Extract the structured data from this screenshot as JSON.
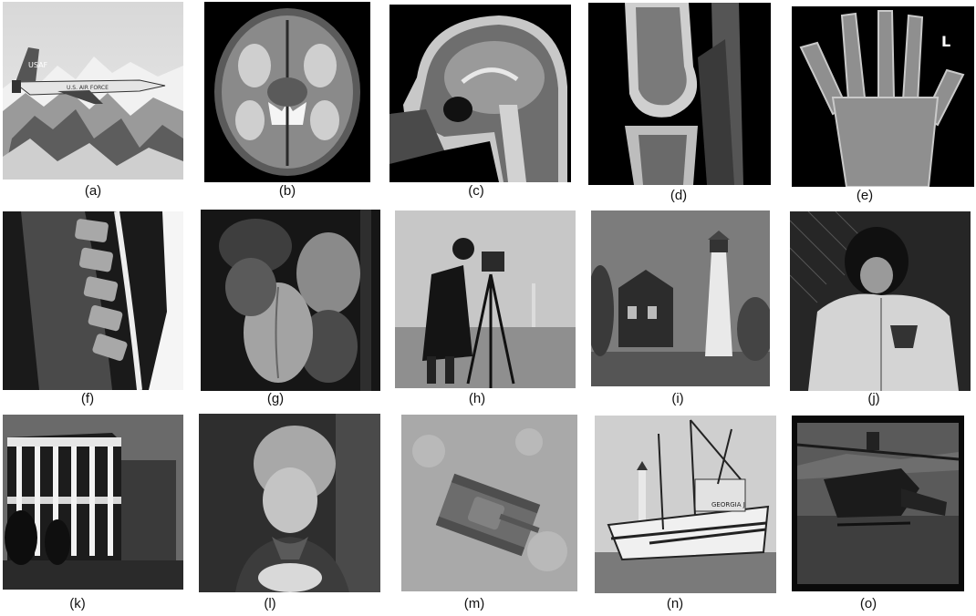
{
  "captions": [
    "(a)",
    "(b)",
    "(c)",
    "(d)",
    "(e)",
    "(f)",
    "(g)",
    "(h)",
    "(i)",
    "(j)",
    "(k)",
    "(l)",
    "(m)",
    "(n)",
    "(o)"
  ],
  "jet_tail_text": "USAF",
  "jet_body_text": "U.S. AIR FORCE",
  "boat_name": "GEORGIA J",
  "hand_marker": "L"
}
